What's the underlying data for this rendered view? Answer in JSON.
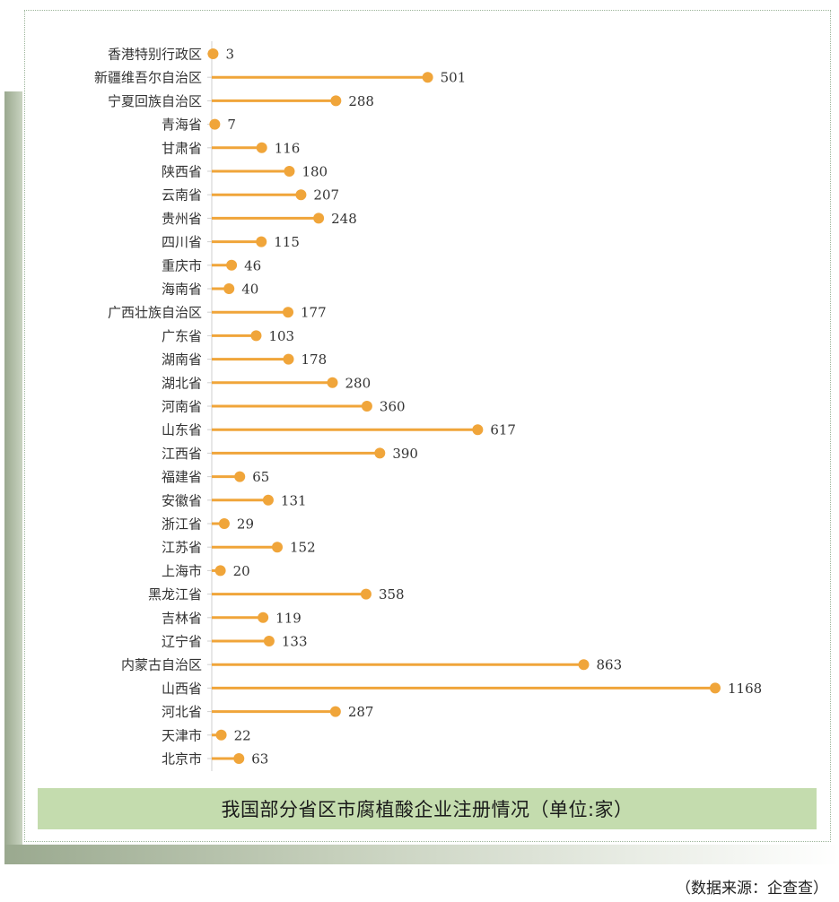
{
  "chart_data": {
    "type": "bar",
    "style": "lollipop",
    "orientation": "horizontal",
    "title": "我国部分省区市腐植酸企业注册情况（单位:家）",
    "categories": [
      "香港特别行政区",
      "新疆维吾尔自治区",
      "宁夏回族自治区",
      "青海省",
      "甘肃省",
      "陕西省",
      "云南省",
      "贵州省",
      "四川省",
      "重庆市",
      "海南省",
      "广西壮族自治区",
      "广东省",
      "湖南省",
      "湖北省",
      "河南省",
      "山东省",
      "江西省",
      "福建省",
      "安徽省",
      "浙江省",
      "江苏省",
      "上海市",
      "黑龙江省",
      "吉林省",
      "辽宁省",
      "内蒙古自治区",
      "山西省",
      "河北省",
      "天津市",
      "北京市"
    ],
    "values": [
      3,
      501,
      288,
      7,
      116,
      180,
      207,
      248,
      115,
      46,
      40,
      177,
      103,
      178,
      280,
      360,
      617,
      390,
      65,
      131,
      29,
      152,
      20,
      358,
      119,
      133,
      863,
      1168,
      287,
      22,
      63
    ],
    "xlim": [
      0,
      1168
    ],
    "grid": false,
    "color": "#f0a53a"
  },
  "caption": "我国部分省区市腐植酸企业注册情况（单位:家）",
  "source": "（数据来源：企查查）"
}
